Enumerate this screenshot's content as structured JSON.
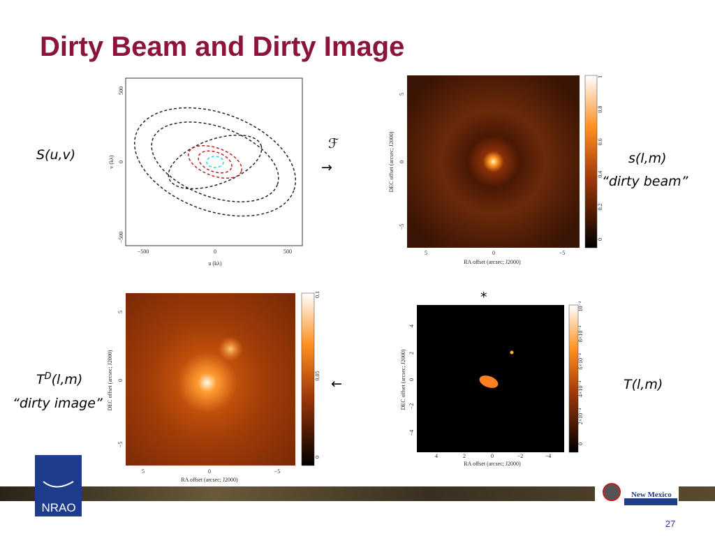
{
  "header": {
    "title": "Dirty Beam and Dirty Image"
  },
  "labels": {
    "suv": "S(u,v)",
    "slm": "s(l,m)",
    "dirty_beam": "“dirty beam”",
    "td": {
      "base": "T",
      "sup": "D",
      "rest": "(l,m)"
    },
    "dirty_image": "“dirty image”",
    "tlm": "T(l,m)"
  },
  "operators": {
    "fourier": "ℱ",
    "arrow_right": "→",
    "convolve": "*",
    "arrow_left": "←"
  },
  "panels": {
    "uv": {
      "xlabel": "u (kλ)",
      "ylabel": "v (kλ)",
      "xticks": [
        "−500",
        "0",
        "500"
      ],
      "yticks": [
        "500",
        "0",
        "−500"
      ]
    },
    "beam": {
      "xlabel": "RA offset (arcsec; J2000)",
      "ylabel": "DEC offset (arcsec; J2000)",
      "xticks": [
        "5",
        "0",
        "−5"
      ],
      "yticks": [
        "5",
        "0",
        "−5"
      ],
      "cbticks": [
        "0",
        "0.2",
        "0.4",
        "0.6",
        "0.8",
        "1"
      ]
    },
    "image": {
      "xlabel": "RA offset (arcsec; J2000)",
      "ylabel": "DEC offset (arcsec; J2000)",
      "xticks": [
        "5",
        "0",
        "−5"
      ],
      "yticks": [
        "5",
        "0",
        "−5"
      ],
      "cbticks": [
        "0",
        "0.05",
        "0.1"
      ]
    },
    "model": {
      "xlabel": "RA offset (arcsec; J2000)",
      "ylabel": "DEC offset (arcsec; J2000)",
      "xticks": [
        "4",
        "2",
        "0",
        "−2",
        "−4"
      ],
      "yticks": [
        "4",
        "2",
        "0",
        "−2",
        "−4"
      ],
      "cbticks": [
        "0",
        "2×10⁻⁴",
        "4×10⁻⁴",
        "6×10⁻⁴",
        "8×10⁻⁴",
        "10⁻³"
      ]
    }
  },
  "footer": {
    "logo_left": "NRAO",
    "logo_right_1": "New Mexico",
    "logo_right_2": "CONSORTIUM",
    "page": "27"
  }
}
